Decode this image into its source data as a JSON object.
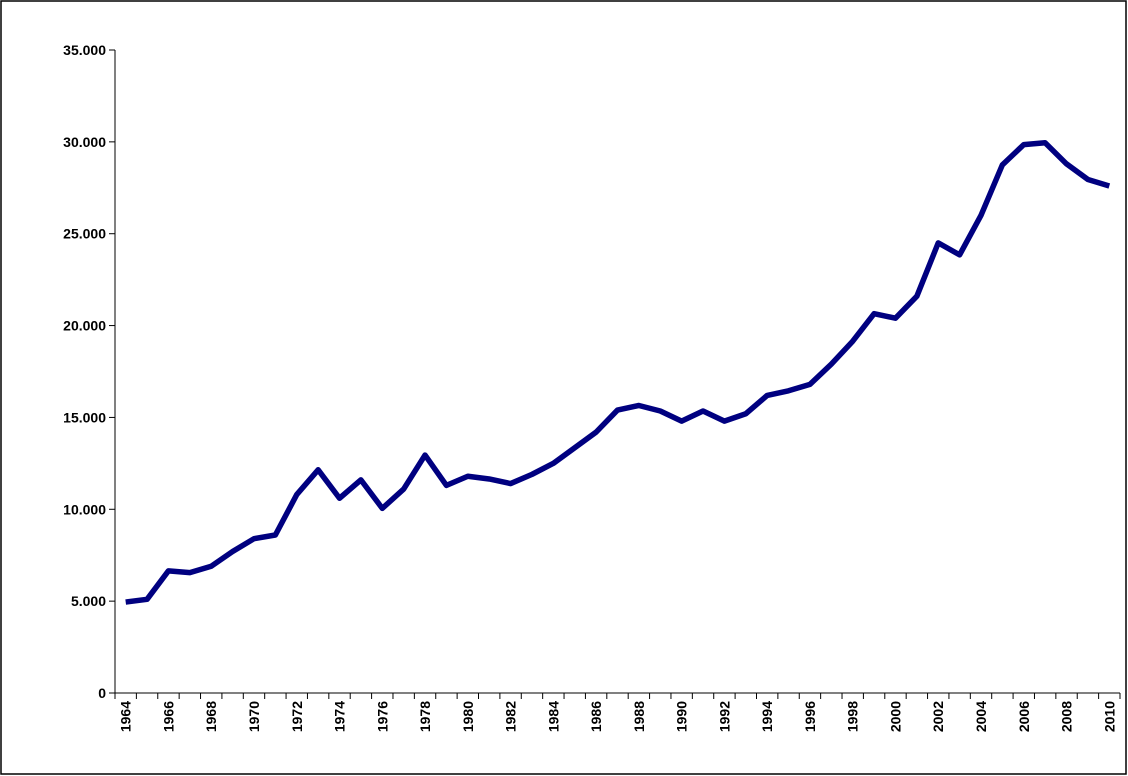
{
  "chart_data": {
    "type": "line",
    "categories": [
      "1964",
      null,
      "1966",
      null,
      "1968",
      null,
      "1970",
      null,
      "1972",
      null,
      "1974",
      null,
      "1976",
      null,
      "1978",
      null,
      "1980",
      null,
      "1982",
      null,
      "1984",
      null,
      "1986",
      null,
      "1988",
      null,
      "1990",
      null,
      "1992",
      null,
      "1994",
      null,
      "1996",
      null,
      "1998",
      null,
      "2000",
      null,
      "2002",
      null,
      "2004",
      null,
      "2006",
      null,
      "2008",
      null,
      "2010"
    ],
    "values": [
      4950,
      5100,
      6650,
      6550,
      6900,
      7700,
      8400,
      8600,
      10800,
      12150,
      10600,
      11600,
      10050,
      11100,
      12950,
      11300,
      11800,
      11650,
      11400,
      11900,
      12500,
      13350,
      14200,
      15400,
      15650,
      15350,
      14800,
      15350,
      14800,
      15200,
      16200,
      16450,
      16800,
      17900,
      19150,
      20650,
      20400,
      21600,
      24500,
      23850,
      26000,
      28750,
      29850,
      29950,
      28800,
      27950,
      27600
    ],
    "color": "#000080",
    "ylim": [
      0,
      35000
    ],
    "yticks": [
      0,
      {
        "value": 5000,
        "label": "5.000"
      },
      {
        "value": 10000,
        "label": "10.000"
      },
      {
        "value": 15000,
        "label": "15.000"
      },
      {
        "value": 20000,
        "label": "20.000"
      },
      {
        "value": 25000,
        "label": "25.000"
      },
      {
        "value": 30000,
        "label": "30.000"
      },
      {
        "value": 35000,
        "label": "35.000"
      }
    ],
    "grid": false
  }
}
